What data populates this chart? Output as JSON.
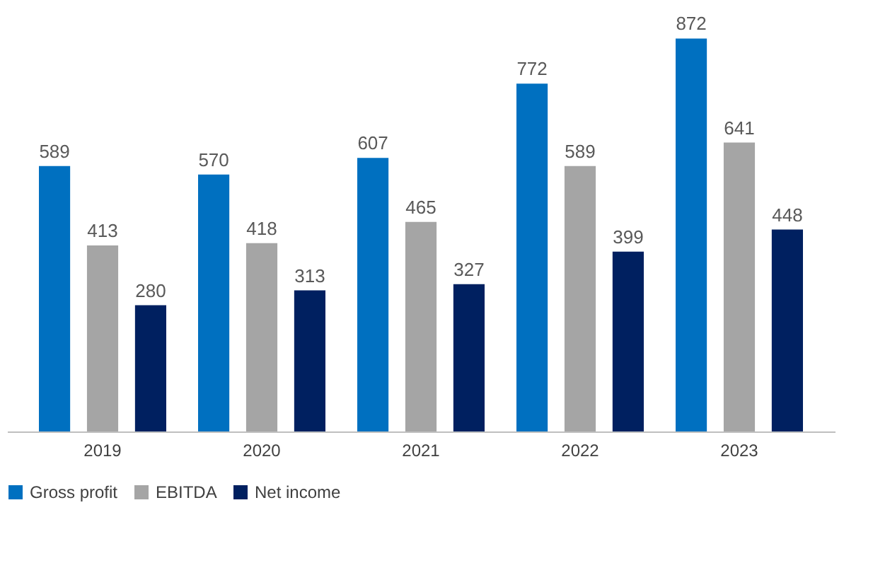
{
  "chart_data": {
    "type": "bar",
    "categories": [
      "2019",
      "2020",
      "2021",
      "2022",
      "2023"
    ],
    "series": [
      {
        "name": "Gross profit",
        "color": "#0070c0",
        "values": [
          589,
          570,
          607,
          772,
          872
        ]
      },
      {
        "name": "EBITDA",
        "color": "#a5a5a5",
        "values": [
          413,
          418,
          465,
          589,
          641
        ]
      },
      {
        "name": "Net income",
        "color": "#002060",
        "values": [
          280,
          313,
          327,
          399,
          448
        ]
      }
    ],
    "data_labels": true,
    "legend": "bottom",
    "grid": false
  }
}
